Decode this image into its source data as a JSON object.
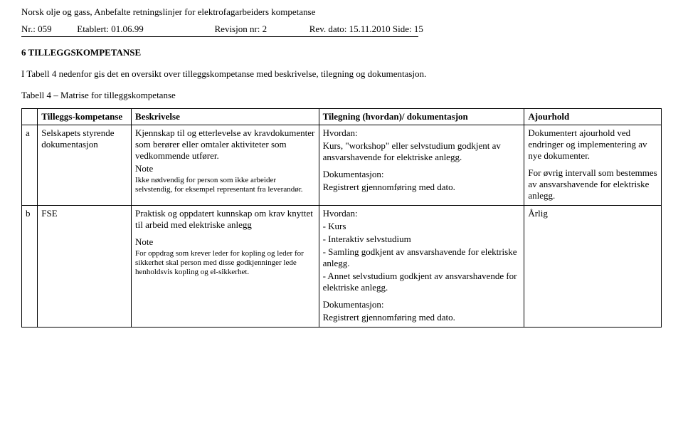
{
  "header": {
    "title": "Norsk olje og gass, Anbefalte retningslinjer for elektrofagarbeiders kompetanse",
    "nr_label": "Nr.: 059",
    "etablert": "Etablert: 01.06.99",
    "revisjon": "Revisjon nr: 2",
    "revdato": "Rev. dato: 15.11.2010",
    "side": "Side: 15"
  },
  "section": {
    "title": "6 TILLEGGSKOMPETANSE",
    "intro": "I Tabell 4 nedenfor gis det en oversikt over tilleggskompetanse med beskrivelse, tilegning og dokumentasjon.",
    "table_caption": "Tabell 4 – Matrise for tilleggskompetanse"
  },
  "table": {
    "headers": {
      "c0": "",
      "c1": "Tilleggs-kompetanse",
      "c2": "Beskrivelse",
      "c3": "Tilegning (hvordan)/ dokumentasjon",
      "c4": "Ajourhold"
    },
    "rows": [
      {
        "idx": "a",
        "komp": "Selskapets styrende dokumentasjon",
        "besk_main": "Kjennskap til og etterlevelse av kravdokumenter som berører eller omtaler aktiviteter som vedkommende utfører.",
        "besk_note_label": "Note",
        "besk_note": "Ikke nødvendig for person som ikke arbeider selvstendig, for eksempel representant fra leverandør.",
        "til_hvordan_label": "Hvordan:",
        "til_hvordan_1": "Kurs, \"workshop\" eller selvstudium godkjent av ansvarshavende for elektriske anlegg.",
        "til_dok_label": "Dokumentasjon:",
        "til_dok_1": "Registrert gjennomføring med dato.",
        "ajour_1": "Dokumentert ajourhold ved endringer og implementering av nye dokumenter.",
        "ajour_2": "For øvrig intervall som bestemmes av ansvarshavende for elektriske anlegg."
      },
      {
        "idx": "b",
        "komp": "FSE",
        "besk_main": "Praktisk og oppdatert kunnskap om krav knyttet til arbeid med elektriske anlegg",
        "besk_note_label": "Note",
        "besk_note": "For oppdrag som krever leder for kopling og leder for sikkerhet skal person med disse godkjenninger lede henholdsvis kopling og el-sikkerhet.",
        "til_hvordan_label": "Hvordan:",
        "til_line1": "- Kurs",
        "til_line2": "- Interaktiv selvstudium",
        "til_line3": "- Samling godkjent av ansvarshavende for elektriske anlegg.",
        "til_line4": "- Annet selvstudium godkjent av ansvarshavende for elektriske anlegg.",
        "til_dok_label": "Dokumentasjon:",
        "til_dok_1": "Registrert gjennomføring med dato.",
        "ajour_1": "Årlig"
      }
    ]
  }
}
